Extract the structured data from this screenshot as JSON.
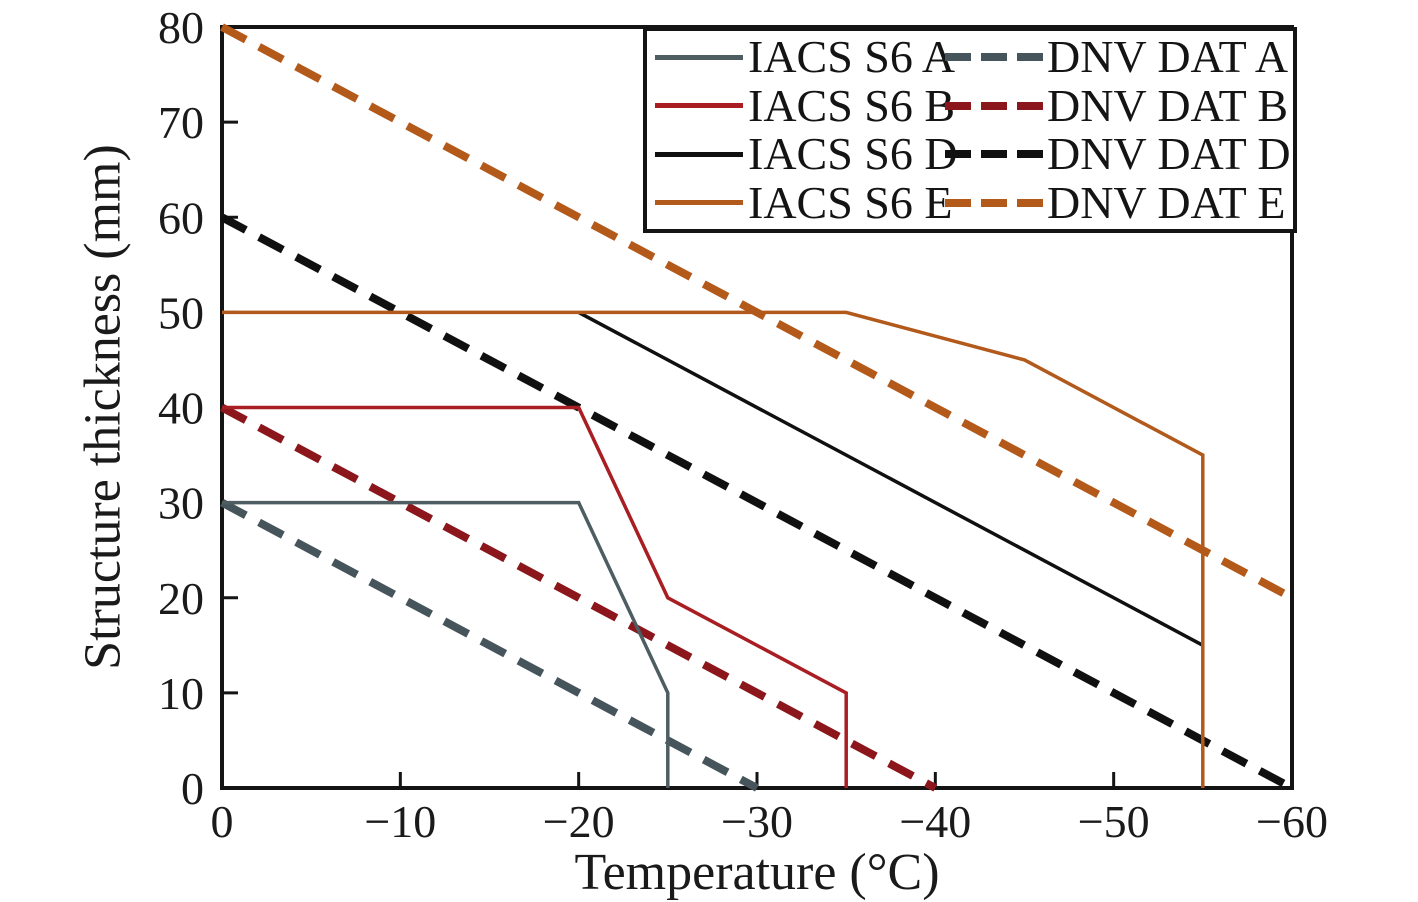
{
  "chart_data": {
    "type": "line",
    "title": "",
    "x_axis": {
      "label": "Temperature (°C)",
      "range": [
        0,
        -60
      ],
      "ticks": [
        0,
        -10,
        -20,
        -30,
        -40,
        -50,
        -60
      ],
      "tick_labels": [
        "0",
        "−10",
        "−20",
        "−30",
        "−40",
        "−50",
        "−60"
      ]
    },
    "y_axis": {
      "label": "Structure thickness (mm)",
      "range": [
        0,
        80
      ],
      "ticks": [
        0,
        10,
        20,
        30,
        40,
        50,
        60,
        70,
        80
      ],
      "tick_labels": [
        "0",
        "10",
        "20",
        "30",
        "40",
        "50",
        "60",
        "70",
        "80"
      ]
    },
    "frame_color": "#141414",
    "series": [
      {
        "name": "IACS S6 A",
        "line_style": "solid",
        "color": "#4e5d62",
        "width": 3.5,
        "points": [
          [
            0,
            30
          ],
          [
            -20,
            30
          ],
          [
            -25,
            10
          ],
          [
            -25,
            0
          ]
        ]
      },
      {
        "name": "IACS S6 B",
        "line_style": "solid",
        "color": "#a81e23",
        "width": 3.5,
        "points": [
          [
            0,
            40
          ],
          [
            -20,
            40
          ],
          [
            -25,
            20
          ],
          [
            -35,
            10
          ],
          [
            -35,
            0
          ]
        ]
      },
      {
        "name": "IACS S6 D",
        "line_style": "solid",
        "color": "#101010",
        "width": 3.5,
        "points": [
          [
            -20,
            50
          ],
          [
            -55,
            15
          ]
        ]
      },
      {
        "name": "IACS S6 E",
        "line_style": "solid",
        "color": "#b2591c",
        "width": 3.5,
        "points": [
          [
            0,
            50
          ],
          [
            -35,
            50
          ],
          [
            -45,
            45
          ],
          [
            -55,
            35
          ],
          [
            -55,
            0
          ]
        ]
      },
      {
        "name": "DNV DAT A",
        "line_style": "dashed",
        "color": "#46545c",
        "width": 8,
        "points": [
          [
            0,
            30
          ],
          [
            -30,
            0
          ]
        ]
      },
      {
        "name": "DNV DAT B",
        "line_style": "dashed",
        "color": "#8b161b",
        "width": 8,
        "points": [
          [
            0,
            40
          ],
          [
            -40,
            0
          ]
        ]
      },
      {
        "name": "DNV DAT D",
        "line_style": "dashed",
        "color": "#101010",
        "width": 8,
        "points": [
          [
            0,
            60
          ],
          [
            -60,
            0
          ]
        ]
      },
      {
        "name": "DNV DAT E",
        "line_style": "dashed",
        "color": "#b3591a",
        "width": 8,
        "points": [
          [
            0,
            80
          ],
          [
            -60,
            20
          ]
        ]
      }
    ],
    "legend": {
      "position": "top-right",
      "pairs": [
        [
          0,
          4
        ],
        [
          1,
          5
        ],
        [
          2,
          6
        ],
        [
          3,
          7
        ]
      ]
    },
    "grid": false
  }
}
